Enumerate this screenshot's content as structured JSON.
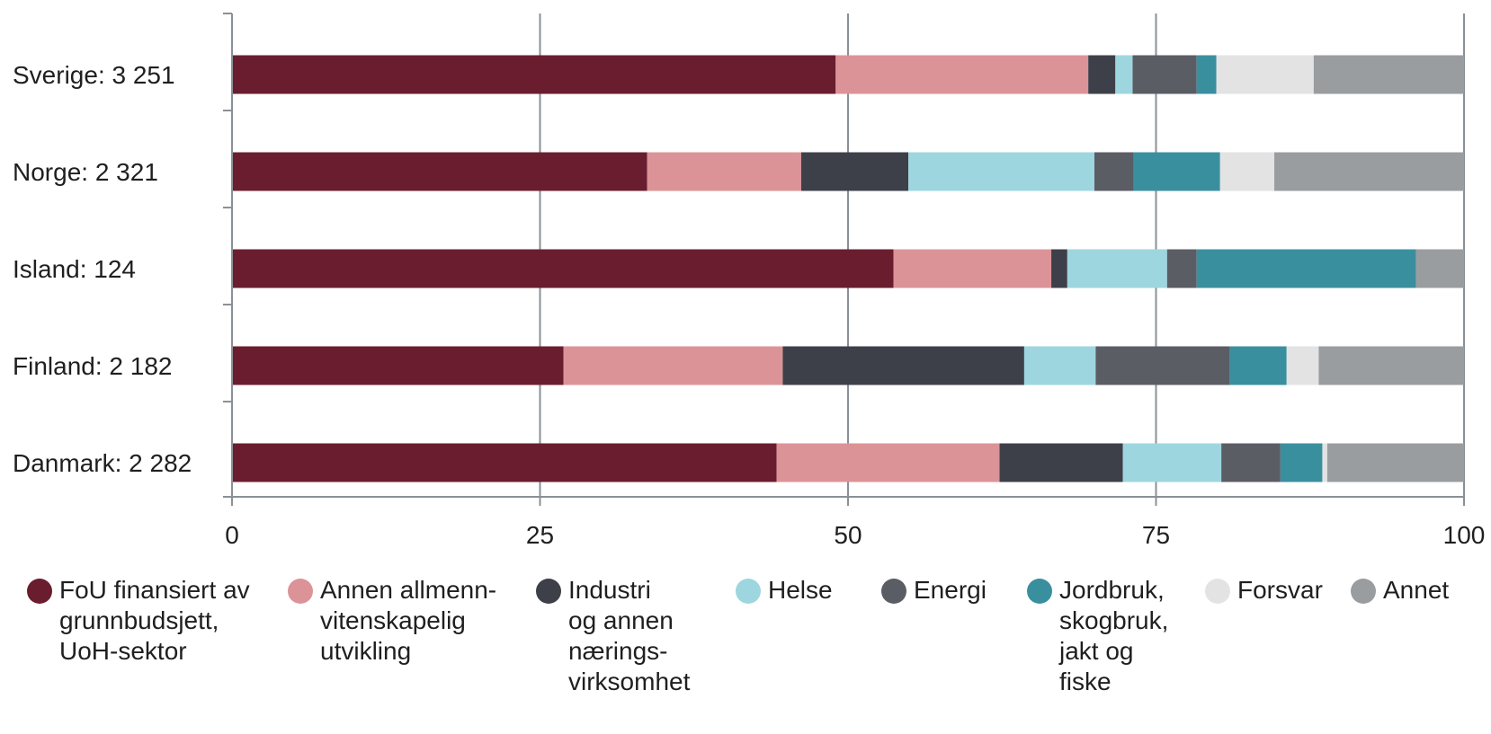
{
  "chart_data": {
    "type": "bar",
    "orientation": "horizontal",
    "stacked": true,
    "categories": [
      "Sverige: 3 251",
      "Norge: 2 321",
      "Island: 124",
      "Finland: 2 182",
      "Danmark: 2 282"
    ],
    "series": [
      {
        "name": "FoU finansiert av grunnbudsjett, UoH-sektor",
        "color": "#6a1d2f",
        "values": [
          49.0,
          33.7,
          53.7,
          26.9,
          44.2
        ]
      },
      {
        "name": "Annen allmenn-vitenskapelig utvikling",
        "color": "#dc9397",
        "values": [
          20.5,
          12.5,
          12.8,
          17.8,
          18.1
        ]
      },
      {
        "name": "Industri og annen nærings-virksomhet",
        "color": "#3e4049",
        "values": [
          2.2,
          8.7,
          1.3,
          19.6,
          10.0
        ]
      },
      {
        "name": "Helse",
        "color": "#9ed6df",
        "values": [
          1.4,
          15.1,
          8.1,
          5.8,
          8.0
        ]
      },
      {
        "name": "Energi",
        "color": "#5b5d65",
        "values": [
          5.2,
          3.2,
          2.4,
          10.9,
          4.8
        ]
      },
      {
        "name": "Jordbruk, skogbruk, jakt og fiske",
        "color": "#3a8f9f",
        "values": [
          1.6,
          7.0,
          17.8,
          4.6,
          3.4
        ]
      },
      {
        "name": "Forsvar",
        "color": "#e3e3e3",
        "values": [
          7.9,
          4.4,
          0.0,
          2.6,
          0.4
        ]
      },
      {
        "name": "Annet",
        "color": "#9a9da0",
        "values": [
          12.2,
          15.4,
          3.9,
          11.8,
          11.1
        ]
      }
    ],
    "xlim": [
      0,
      100
    ],
    "xticks": [
      "0",
      "25",
      "50",
      "75",
      "100"
    ],
    "grid": "vertical",
    "legend_position": "bottom",
    "title": "",
    "xlabel": "",
    "ylabel": ""
  },
  "legend": {
    "items": [
      {
        "label": "FoU finansiert av\ngrunnbudsjett,\nUoH-sektor",
        "color": "#6a1d2f"
      },
      {
        "label": "Annen allmenn-\nvitenskapelig\nutvikling",
        "color": "#dc9397"
      },
      {
        "label": "Industri\nog annen\nnærings-\nvirksomhet",
        "color": "#3e4049"
      },
      {
        "label": "Helse",
        "color": "#9ed6df"
      },
      {
        "label": "Energi",
        "color": "#5b5d65"
      },
      {
        "label": "Jordbruk,\nskogbruk,\njakt og\nfiske",
        "color": "#3a8f9f"
      },
      {
        "label": "Forsvar",
        "color": "#e3e3e3"
      },
      {
        "label": "Annet",
        "color": "#9a9da0"
      }
    ]
  }
}
